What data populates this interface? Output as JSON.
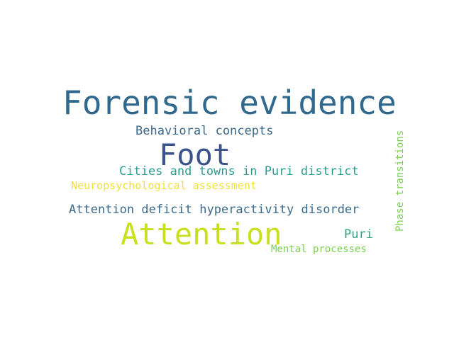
{
  "words": [
    {
      "text": "Forensic evidence",
      "color": "#31688e"
    },
    {
      "text": "Behavioral concepts",
      "color": "#3b6a8a"
    },
    {
      "text": "Foot",
      "color": "#3b528b"
    },
    {
      "text": "Cities and towns in Puri district",
      "color": "#2a9d8f"
    },
    {
      "text": "Neuropsychological assessment",
      "color": "#f2e03b"
    },
    {
      "text": "Attention deficit hyperactivity disorder",
      "color": "#3b6a8a"
    },
    {
      "text": "Attention",
      "color": "#c8e020"
    },
    {
      "text": "Puri",
      "color": "#2aa67e"
    },
    {
      "text": "Mental processes",
      "color": "#7ad151"
    },
    {
      "text": "Phase transitions",
      "color": "#7ad151"
    }
  ]
}
